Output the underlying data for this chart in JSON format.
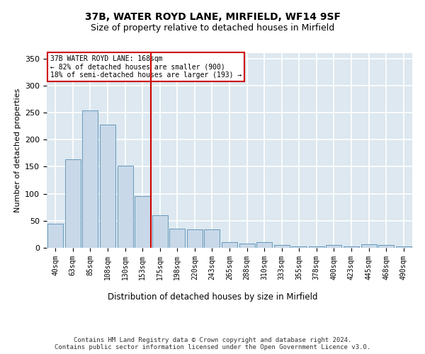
{
  "title1": "37B, WATER ROYD LANE, MIRFIELD, WF14 9SF",
  "title2": "Size of property relative to detached houses in Mirfield",
  "xlabel": "Distribution of detached houses by size in Mirfield",
  "ylabel": "Number of detached properties",
  "categories": [
    "40sqm",
    "63sqm",
    "85sqm",
    "108sqm",
    "130sqm",
    "153sqm",
    "175sqm",
    "198sqm",
    "220sqm",
    "243sqm",
    "265sqm",
    "288sqm",
    "310sqm",
    "333sqm",
    "355sqm",
    "378sqm",
    "400sqm",
    "423sqm",
    "445sqm",
    "468sqm",
    "490sqm"
  ],
  "values": [
    44,
    163,
    254,
    228,
    152,
    95,
    60,
    35,
    34,
    34,
    10,
    8,
    10,
    5,
    3,
    3,
    5,
    3,
    6,
    5,
    2
  ],
  "bar_color": "#c8d8e8",
  "bar_edge_color": "#6699bb",
  "vline_color": "#cc0000",
  "vline_pos": 5.5,
  "annotation_text": "37B WATER ROYD LANE: 168sqm\n← 82% of detached houses are smaller (900)\n18% of semi-detached houses are larger (193) →",
  "annotation_box_color": "#ffffff",
  "annotation_box_edge": "#cc0000",
  "ylim": [
    0,
    360
  ],
  "yticks": [
    0,
    50,
    100,
    150,
    200,
    250,
    300,
    350
  ],
  "background_color": "#dde8f0",
  "grid_color": "#ffffff",
  "footer": "Contains HM Land Registry data © Crown copyright and database right 2024.\nContains public sector information licensed under the Open Government Licence v3.0.",
  "title1_fontsize": 10,
  "title2_fontsize": 9,
  "xlabel_fontsize": 8.5,
  "ylabel_fontsize": 8,
  "footer_fontsize": 6.5,
  "tick_fontsize": 7
}
